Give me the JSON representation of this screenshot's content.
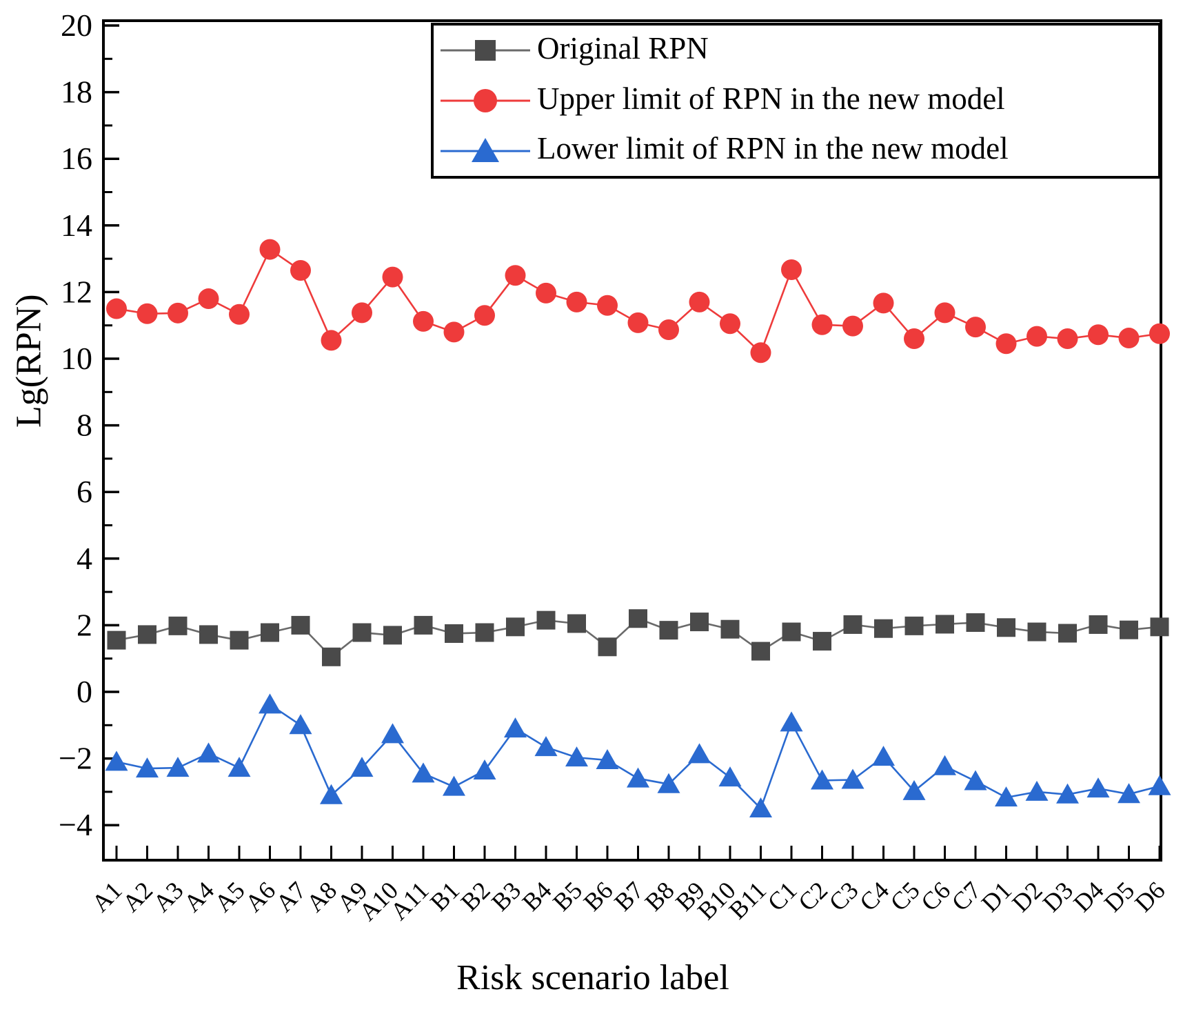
{
  "chart_data": {
    "type": "line",
    "title": "",
    "xlabel": "Risk scenario label",
    "ylabel": "Lg(RPN)",
    "ylim": [
      -5.1,
      20.2
    ],
    "y_major_ticks": [
      20,
      18,
      16,
      14,
      12,
      10,
      8,
      6,
      4,
      2,
      0,
      -2,
      -4
    ],
    "y_minor_ticks": [
      19,
      17,
      15,
      13,
      11,
      9,
      7,
      5,
      3,
      1,
      -1,
      -3
    ],
    "grid": false,
    "legend_position": "top-right-inside",
    "categories": [
      "A1",
      "A2",
      "A3",
      "A4",
      "A5",
      "A6",
      "A7",
      "A8",
      "A9",
      "A10",
      "A11",
      "B1",
      "B2",
      "B3",
      "B4",
      "B5",
      "B6",
      "B7",
      "B8",
      "B9",
      "B10",
      "B11",
      "C1",
      "C2",
      "C3",
      "C4",
      "C5",
      "C6",
      "C7",
      "D1",
      "D2",
      "D3",
      "D4",
      "D5",
      "D6"
    ],
    "series": [
      {
        "name": "Original RPN",
        "marker": "square",
        "color": "#4a4a4a",
        "line_color": "#6a6a6a",
        "values": [
          1.55,
          1.72,
          1.98,
          1.72,
          1.55,
          1.78,
          2.0,
          1.05,
          1.78,
          1.7,
          2.0,
          1.75,
          1.78,
          1.95,
          2.15,
          2.05,
          1.35,
          2.2,
          1.85,
          2.1,
          1.88,
          1.22,
          1.8,
          1.52,
          2.02,
          1.9,
          1.98,
          2.03,
          2.08,
          1.93,
          1.8,
          1.76,
          2.02,
          1.86,
          1.95
        ]
      },
      {
        "name": "Upper limit of RPN in the new model",
        "marker": "circle",
        "color": "#ee3b3b",
        "line_color": "#ee3b3b",
        "values": [
          11.5,
          11.35,
          11.37,
          11.8,
          11.33,
          13.28,
          12.65,
          10.55,
          11.38,
          12.45,
          11.12,
          10.8,
          11.3,
          12.5,
          11.97,
          11.7,
          11.6,
          11.08,
          10.87,
          11.7,
          11.05,
          10.18,
          12.67,
          11.02,
          10.98,
          11.67,
          10.6,
          11.38,
          10.95,
          10.45,
          10.67,
          10.6,
          10.72,
          10.62,
          10.75
        ]
      },
      {
        "name": "Lower limit of RPN in the new model",
        "marker": "triangle",
        "color": "#2a6ad0",
        "line_color": "#2a6ad0",
        "values": [
          -2.1,
          -2.3,
          -2.28,
          -1.85,
          -2.28,
          -0.38,
          -1.0,
          -3.1,
          -2.28,
          -1.27,
          -2.45,
          -2.85,
          -2.36,
          -1.1,
          -1.66,
          -1.97,
          -2.05,
          -2.6,
          -2.77,
          -1.87,
          -2.57,
          -3.5,
          -0.92,
          -2.66,
          -2.64,
          -1.95,
          -2.98,
          -2.23,
          -2.68,
          -3.17,
          -3.0,
          -3.08,
          -2.9,
          -3.07,
          -2.83
        ]
      }
    ]
  }
}
